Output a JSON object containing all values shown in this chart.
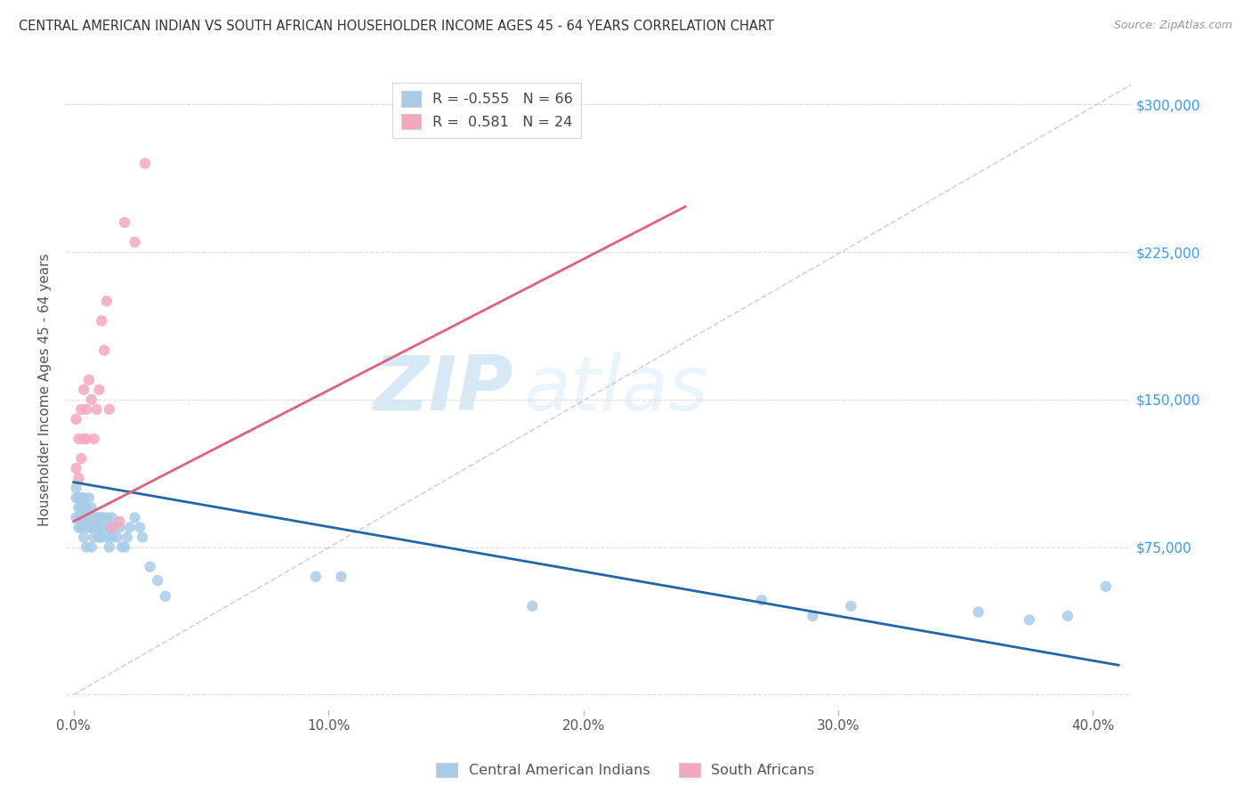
{
  "title": "CENTRAL AMERICAN INDIAN VS SOUTH AFRICAN HOUSEHOLDER INCOME AGES 45 - 64 YEARS CORRELATION CHART",
  "source": "Source: ZipAtlas.com",
  "ylabel": "Householder Income Ages 45 - 64 years",
  "yticks": [
    0,
    75000,
    150000,
    225000,
    300000
  ],
  "ytick_labels": [
    "",
    "$75,000",
    "$150,000",
    "$225,000",
    "$300,000"
  ],
  "xlim": [
    -0.003,
    0.415
  ],
  "ylim": [
    -8000,
    318000
  ],
  "blue_R": "-0.555",
  "blue_N": "66",
  "pink_R": "0.581",
  "pink_N": "24",
  "blue_color": "#a8cce8",
  "pink_color": "#f4a8be",
  "blue_line_color": "#2266aa",
  "pink_line_color": "#e06080",
  "dashed_line_color": "#c8c8c8",
  "watermark_color": "#ddeef8",
  "blue_scatter_x": [
    0.001,
    0.001,
    0.001,
    0.002,
    0.002,
    0.002,
    0.002,
    0.003,
    0.003,
    0.003,
    0.003,
    0.004,
    0.004,
    0.004,
    0.004,
    0.005,
    0.005,
    0.005,
    0.005,
    0.006,
    0.006,
    0.006,
    0.007,
    0.007,
    0.007,
    0.007,
    0.008,
    0.008,
    0.008,
    0.009,
    0.009,
    0.01,
    0.01,
    0.01,
    0.011,
    0.011,
    0.012,
    0.013,
    0.013,
    0.014,
    0.014,
    0.015,
    0.015,
    0.016,
    0.017,
    0.018,
    0.019,
    0.02,
    0.021,
    0.022,
    0.024,
    0.026,
    0.027,
    0.03,
    0.033,
    0.036,
    0.095,
    0.105,
    0.18,
    0.27,
    0.29,
    0.305,
    0.355,
    0.375,
    0.39,
    0.405
  ],
  "blue_scatter_y": [
    105000,
    100000,
    90000,
    100000,
    95000,
    90000,
    85000,
    100000,
    95000,
    90000,
    85000,
    100000,
    95000,
    90000,
    80000,
    95000,
    90000,
    85000,
    75000,
    100000,
    90000,
    85000,
    95000,
    90000,
    85000,
    75000,
    90000,
    85000,
    80000,
    90000,
    85000,
    90000,
    85000,
    80000,
    90000,
    80000,
    85000,
    90000,
    80000,
    85000,
    75000,
    90000,
    80000,
    85000,
    80000,
    85000,
    75000,
    75000,
    80000,
    85000,
    90000,
    85000,
    80000,
    65000,
    58000,
    50000,
    60000,
    60000,
    45000,
    48000,
    40000,
    45000,
    42000,
    38000,
    40000,
    55000
  ],
  "pink_scatter_x": [
    0.001,
    0.001,
    0.002,
    0.002,
    0.003,
    0.003,
    0.004,
    0.004,
    0.005,
    0.005,
    0.006,
    0.007,
    0.008,
    0.009,
    0.01,
    0.011,
    0.012,
    0.013,
    0.014,
    0.015,
    0.018,
    0.02,
    0.024,
    0.028
  ],
  "pink_scatter_y": [
    140000,
    115000,
    130000,
    110000,
    145000,
    120000,
    155000,
    130000,
    145000,
    130000,
    160000,
    150000,
    130000,
    145000,
    155000,
    190000,
    175000,
    200000,
    145000,
    85000,
    88000,
    240000,
    230000,
    270000
  ],
  "blue_line_x": [
    0.0,
    0.41
  ],
  "blue_line_y": [
    108000,
    15000
  ],
  "pink_line_x": [
    0.0,
    0.24
  ],
  "pink_line_y": [
    88000,
    248000
  ],
  "dashed_line_x": [
    0.0,
    0.415
  ],
  "dashed_line_y": [
    0,
    310000
  ],
  "background_color": "#ffffff",
  "grid_color": "#dddddd",
  "xtick_vals": [
    0.0,
    0.1,
    0.2,
    0.3,
    0.4
  ],
  "xtick_labels": [
    "0.0%",
    "10.0%",
    "20.0%",
    "30.0%",
    "40.0%"
  ]
}
